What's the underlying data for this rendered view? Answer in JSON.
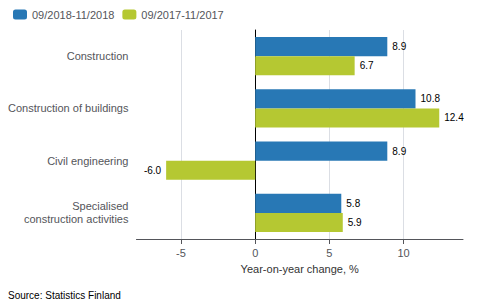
{
  "chart_data": {
    "type": "bar",
    "orientation": "horizontal",
    "categories": [
      "Construction",
      "Construction of buildings",
      "Civil engineering",
      "Specialised\nconstruction activities"
    ],
    "series": [
      {
        "name": "09/2018-11/2018",
        "color": "#2878b5",
        "values": [
          8.9,
          10.8,
          8.9,
          5.8
        ],
        "value_labels": [
          "8.9",
          "10.8",
          "8.9",
          "5.8"
        ]
      },
      {
        "name": "09/2017-11/2017",
        "color": "#b5c832",
        "values": [
          6.7,
          12.4,
          -6.0,
          5.9
        ],
        "value_labels": [
          "6.7",
          "12.4",
          "-6.0",
          "5.9"
        ]
      }
    ],
    "xlabel": "Year-on-year change, %",
    "xlim": [
      -8,
      14
    ],
    "xticks": [
      -5,
      0,
      5,
      10
    ],
    "grid": true,
    "legend": "upper left",
    "data_labels": true,
    "annotations": [
      "Source: Statistics Finland"
    ]
  }
}
